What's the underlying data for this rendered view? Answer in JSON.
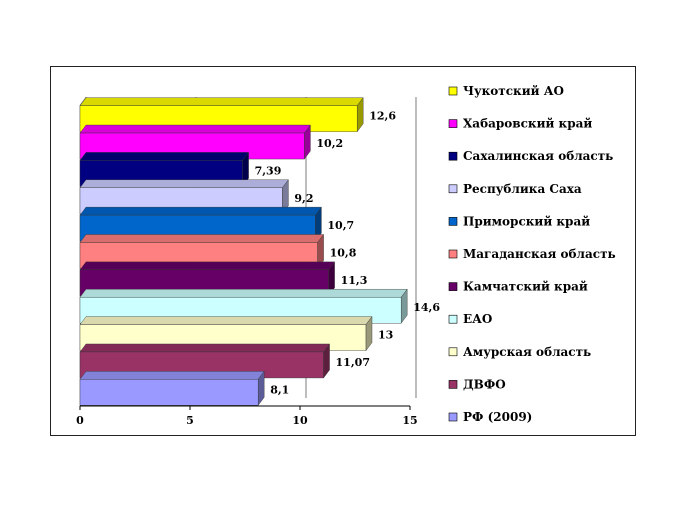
{
  "chart_data": {
    "type": "bar",
    "orientation": "horizontal",
    "style": "3d",
    "categories": [
      "Чукотский АО",
      "Хабаровский край",
      "Сахалинская область",
      "Республика Саха",
      "Приморский край",
      "Магаданская область",
      "Камчатский край",
      "ЕАО",
      "Амурская область",
      "ДВФО",
      "РФ (2009)"
    ],
    "values": [
      12.6,
      10.2,
      7.39,
      9.2,
      10.7,
      10.8,
      11.3,
      14.6,
      13,
      11.07,
      8.1
    ],
    "value_labels": [
      "12,6",
      "10,2",
      "7,39",
      "9,2",
      "10,7",
      "10,8",
      "11,3",
      "14,6",
      "13",
      "11,07",
      "8,1"
    ],
    "colors": [
      "#FFFF00",
      "#FF00FF",
      "#000080",
      "#CCCCFF",
      "#0066CC",
      "#FF8080",
      "#660066",
      "#CCFFFF",
      "#FFFFCC",
      "#993366",
      "#9999FF"
    ],
    "xlim": [
      0,
      15
    ],
    "xticks": [
      "0",
      "5",
      "10",
      "15"
    ],
    "grid": true,
    "legend": "right",
    "title": "",
    "xlabel": "",
    "ylabel": ""
  }
}
